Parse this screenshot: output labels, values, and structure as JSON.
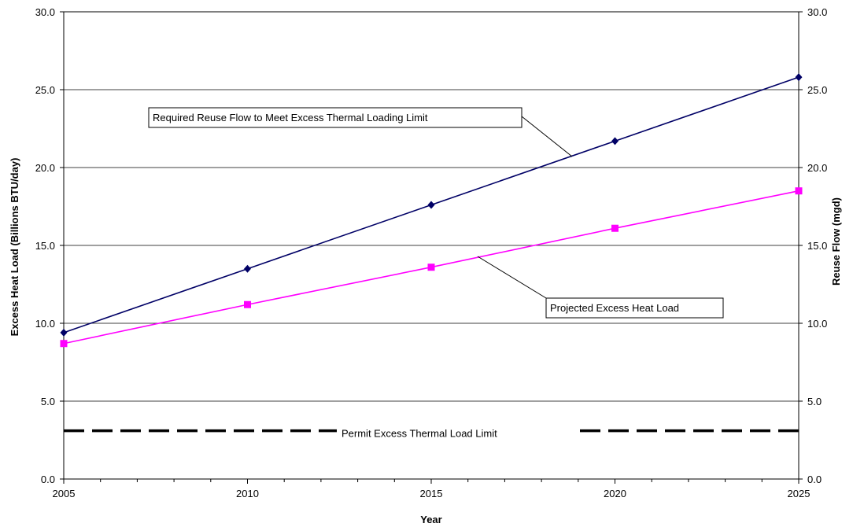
{
  "chart_data": {
    "type": "line",
    "title": "",
    "xlabel": "Year",
    "ylabel": "Excess Heat Load (Billions BTU/day)",
    "y2label": "Reuse Flow (mgd)",
    "x": [
      2005,
      2010,
      2015,
      2020,
      2025
    ],
    "xlim": [
      2005,
      2025
    ],
    "ylim": [
      0,
      30
    ],
    "y2lim": [
      0,
      30
    ],
    "x_ticks": [
      "2005",
      "2010",
      "2015",
      "2020",
      "2025"
    ],
    "y_ticks": [
      "0.0",
      "5.0",
      "10.0",
      "15.0",
      "20.0",
      "25.0",
      "30.0"
    ],
    "y2_ticks": [
      "0.0",
      "5.0",
      "10.0",
      "15.0",
      "20.0",
      "25.0",
      "30.0"
    ],
    "grid": "horizontal",
    "series": [
      {
        "name": "Required Reuse Flow to Meet Excess Thermal Loading Limit",
        "axis": "right",
        "values": [
          9.4,
          13.5,
          17.6,
          21.7,
          25.8
        ],
        "color": "#000066",
        "marker": "diamond"
      },
      {
        "name": "Projected Excess Heat Load",
        "axis": "left",
        "values": [
          8.7,
          11.2,
          13.6,
          16.1,
          18.5
        ],
        "color": "#ff00ff",
        "marker": "square"
      },
      {
        "name": "Permit Excess Thermal Load Limit",
        "axis": "left",
        "values": [
          3.1,
          3.1
        ],
        "x": [
          2005,
          2025
        ],
        "color": "#000000",
        "style": "dashed"
      }
    ]
  }
}
